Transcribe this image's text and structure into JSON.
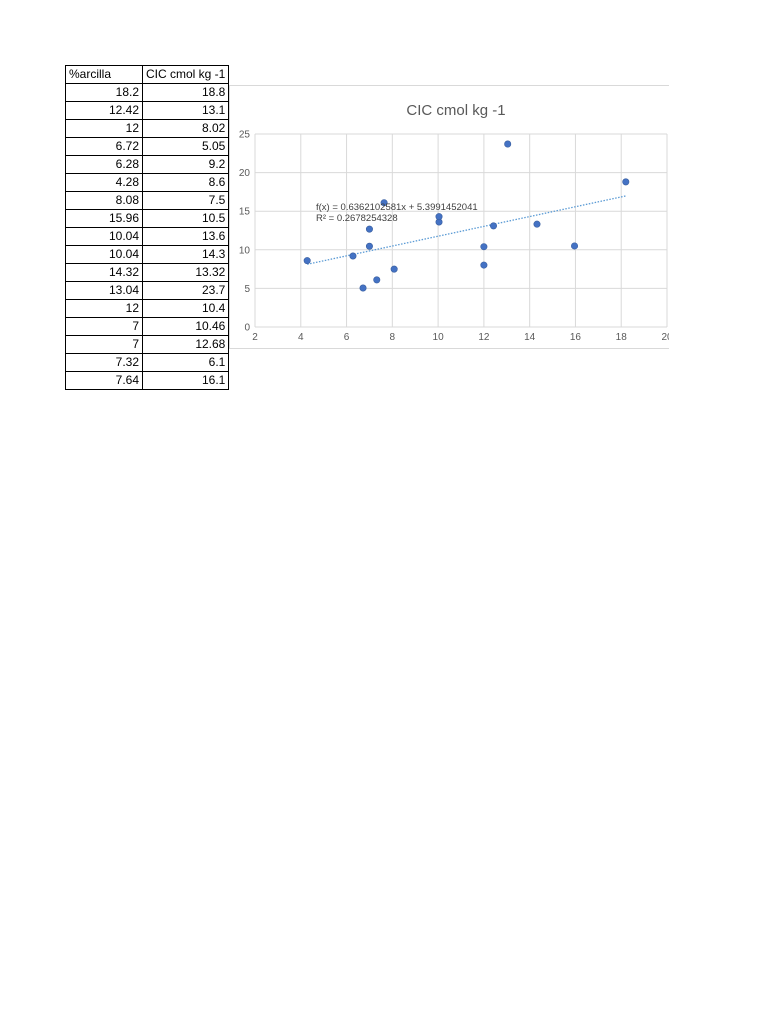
{
  "table": {
    "headers": [
      "%arcilla",
      "CIC cmol kg -1"
    ],
    "rows": [
      [
        "18.2",
        "18.8"
      ],
      [
        "12.42",
        "13.1"
      ],
      [
        "12",
        "8.02"
      ],
      [
        "6.72",
        "5.05"
      ],
      [
        "6.28",
        "9.2"
      ],
      [
        "4.28",
        "8.6"
      ],
      [
        "8.08",
        "7.5"
      ],
      [
        "15.96",
        "10.5"
      ],
      [
        "10.04",
        "13.6"
      ],
      [
        "10.04",
        "14.3"
      ],
      [
        "14.32",
        "13.32"
      ],
      [
        "13.04",
        "23.7"
      ],
      [
        "12",
        "10.4"
      ],
      [
        "7",
        "10.46"
      ],
      [
        "7",
        "12.68"
      ],
      [
        "7.32",
        "6.1"
      ],
      [
        "7.64",
        "16.1"
      ]
    ]
  },
  "chart_data": {
    "type": "scatter",
    "title": "CIC cmol kg -1",
    "xlabel": "",
    "ylabel": "",
    "xlim": [
      2,
      20
    ],
    "ylim": [
      0,
      25
    ],
    "xticks": [
      2,
      4,
      6,
      8,
      10,
      12,
      14,
      16,
      18,
      20
    ],
    "xtick_labels": [
      "2",
      "4",
      "6",
      "8",
      "10",
      "12",
      "14",
      "16",
      "18",
      "20"
    ],
    "yticks": [
      0,
      5,
      10,
      15,
      20,
      25
    ],
    "grid": true,
    "marker_color": "#4472c4",
    "points": [
      [
        18.2,
        18.8
      ],
      [
        12.42,
        13.1
      ],
      [
        12,
        8.02
      ],
      [
        6.72,
        5.05
      ],
      [
        6.28,
        9.2
      ],
      [
        4.28,
        8.6
      ],
      [
        8.08,
        7.5
      ],
      [
        15.96,
        10.5
      ],
      [
        10.04,
        13.6
      ],
      [
        10.04,
        14.3
      ],
      [
        14.32,
        13.32
      ],
      [
        13.04,
        23.7
      ],
      [
        12,
        10.4
      ],
      [
        7,
        10.46
      ],
      [
        7,
        12.68
      ],
      [
        7.32,
        6.1
      ],
      [
        7.64,
        16.1
      ]
    ],
    "trendline": {
      "type": "linear",
      "slope": 0.6362102581,
      "intercept": 5.3991452041,
      "equation": "f(x) = 0.6362102581x + 5.3991452041",
      "r_squared": "R² = 0.2678254328",
      "color": "#5b9bd5"
    }
  }
}
